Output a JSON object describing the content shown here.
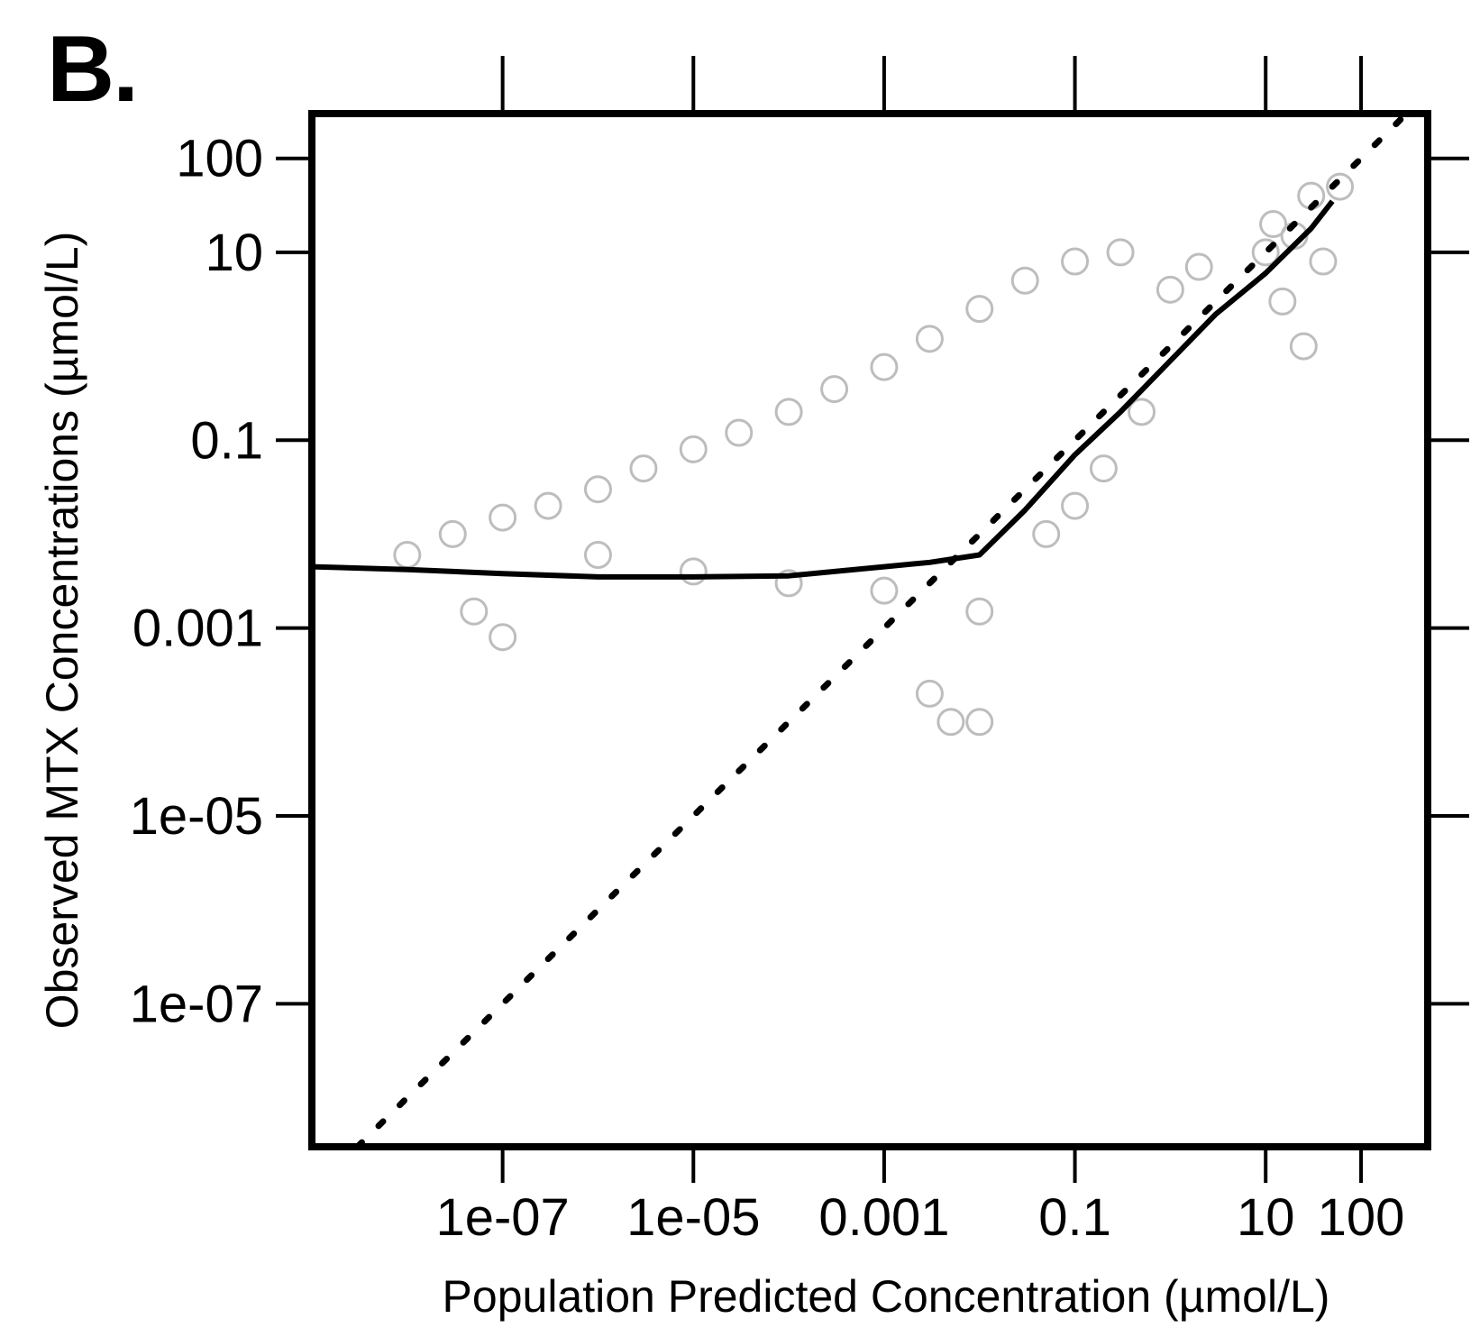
{
  "panel_label": "B.",
  "chart_data": {
    "type": "scatter",
    "xlabel": "Population Predicted Concentration (µmol/L)",
    "ylabel": "Observed MTX Concentrations (µmol/L)",
    "x_scale": "log",
    "y_scale": "log",
    "xlim": [
      1e-09,
      500
    ],
    "ylim": [
      3e-09,
      300
    ],
    "x_ticks": [
      1e-07,
      1e-05,
      0.001,
      0.1,
      10,
      100
    ],
    "x_tick_labels": [
      "1e-07",
      "1e-05",
      "0.001",
      "0.1",
      "10",
      "100"
    ],
    "y_ticks": [
      1e-07,
      1e-05,
      0.001,
      0.1,
      10,
      100
    ],
    "y_tick_labels": [
      "1e-07",
      "1e-05",
      "0.001",
      "0.1",
      "10",
      "100"
    ],
    "grid": false,
    "legend": "none",
    "colors": {
      "points": "#bdbdbd",
      "trend": "#000000",
      "identity": "#000000"
    },
    "series": [
      {
        "kind": "points",
        "x": [
          1e-08,
          3e-08,
          1e-07,
          3e-07,
          1e-06,
          3e-06,
          1e-05,
          3e-05,
          0.0001,
          0.0003,
          0.001,
          0.003,
          0.01,
          0.03,
          0.1,
          0.3,
          1e-06,
          1e-05,
          0.0001,
          0.001,
          0.01,
          0.1,
          1e-07,
          5e-08,
          0.003,
          0.01,
          0.005,
          0.05,
          0.2,
          0.5,
          10,
          20,
          30,
          15,
          40,
          25,
          12,
          60,
          2,
          1
        ],
        "y": [
          0.006,
          0.01,
          0.015,
          0.02,
          0.03,
          0.05,
          0.08,
          0.12,
          0.2,
          0.35,
          0.6,
          1.2,
          2.5,
          5,
          8,
          10,
          0.006,
          0.004,
          0.003,
          0.0025,
          0.0015,
          0.02,
          0.0008,
          0.0015,
          0.0002,
          0.0001,
          0.0001,
          0.01,
          0.05,
          0.2,
          10,
          15,
          40,
          3,
          8,
          1,
          20,
          50,
          7,
          4
        ]
      },
      {
        "kind": "trend",
        "x": [
          1e-09,
          1e-08,
          1e-07,
          1e-06,
          1e-05,
          0.0001,
          0.001,
          0.003,
          0.01,
          0.03,
          0.1,
          0.3,
          1,
          3,
          10,
          30,
          50
        ],
        "y": [
          0.0045,
          0.0042,
          0.0038,
          0.0035,
          0.0035,
          0.0036,
          0.0045,
          0.005,
          0.006,
          0.018,
          0.07,
          0.2,
          0.7,
          2.2,
          6,
          18,
          35
        ]
      },
      {
        "kind": "identity",
        "x": [
          3e-09,
          300
        ],
        "y": [
          3e-09,
          300
        ]
      }
    ]
  }
}
